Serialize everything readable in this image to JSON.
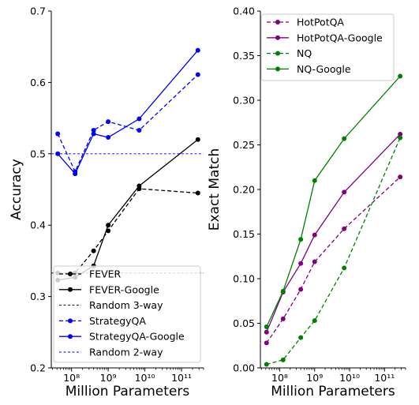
{
  "chart_data": [
    {
      "type": "line",
      "xlabel": "Million Parameters",
      "ylabel": "Accuracy",
      "xscale": "log",
      "xlim": [
        28000000,
        400000000000
      ],
      "ylim": [
        0.2,
        0.7
      ],
      "xticks": [
        100000000,
        1000000000,
        10000000000,
        100000000000
      ],
      "xtick_labels": [
        "10⁸",
        "10⁹",
        "10¹⁰",
        "10¹¹"
      ],
      "yticks": [
        0.2,
        0.3,
        0.4,
        0.5,
        0.6,
        0.7
      ],
      "ytick_labels": [
        "0.2",
        "0.3",
        "0.4",
        "0.5",
        "0.6",
        "0.7"
      ],
      "grid": false,
      "legend_position": "bottom-left",
      "series": [
        {
          "name": "FEVER",
          "color": "#000000",
          "dashed": true,
          "marker": "circle",
          "x": [
            42000000,
            125000000,
            400000000,
            1000000000,
            7000000000,
            280000000000
          ],
          "y": [
            0.333,
            0.333,
            0.364,
            0.392,
            0.451,
            0.445
          ]
        },
        {
          "name": "FEVER-Google",
          "color": "#000000",
          "dashed": false,
          "marker": "circle",
          "x": [
            42000000,
            125000000,
            400000000,
            1000000000,
            7000000000,
            280000000000
          ],
          "y": [
            0.323,
            0.327,
            0.343,
            0.4,
            0.455,
            0.52
          ]
        },
        {
          "name": "Random 3-way",
          "color": "#000000",
          "dashed": true,
          "marker": "none",
          "hline": 0.333
        },
        {
          "name": "StrategyQA",
          "color": "#0000ff",
          "dashed": true,
          "marker": "circle",
          "x": [
            42000000,
            125000000,
            400000000,
            1000000000,
            7000000000,
            280000000000
          ],
          "y": [
            0.528,
            0.475,
            0.533,
            0.545,
            0.533,
            0.611
          ]
        },
        {
          "name": "StrategyQA-Google",
          "color": "#0000ff",
          "dashed": false,
          "marker": "circle",
          "x": [
            42000000,
            125000000,
            400000000,
            1000000000,
            7000000000,
            280000000000
          ],
          "y": [
            0.5,
            0.472,
            0.528,
            0.523,
            0.549,
            0.645
          ]
        },
        {
          "name": "Random 2-way",
          "color": "#0000ff",
          "dashed": true,
          "marker": "none",
          "hline": 0.5
        }
      ]
    },
    {
      "type": "line",
      "xlabel": "Million Parameters",
      "ylabel": "Exact Match",
      "xscale": "log",
      "xlim": [
        28000000,
        400000000000
      ],
      "ylim": [
        0.0,
        0.4
      ],
      "xticks": [
        100000000,
        1000000000,
        10000000000,
        100000000000
      ],
      "xtick_labels": [
        "10⁸",
        "10⁹",
        "10¹⁰",
        "10¹¹"
      ],
      "yticks": [
        0.0,
        0.05,
        0.1,
        0.15,
        0.2,
        0.25,
        0.3,
        0.35,
        0.4
      ],
      "ytick_labels": [
        "0.00",
        "0.05",
        "0.10",
        "0.15",
        "0.20",
        "0.25",
        "0.30",
        "0.35",
        "0.40"
      ],
      "grid": false,
      "legend_position": "top-left",
      "series": [
        {
          "name": "HotPotQA",
          "color": "#800080",
          "dashed": true,
          "marker": "circle",
          "x": [
            42000000,
            125000000,
            400000000,
            1000000000,
            7000000000,
            280000000000
          ],
          "y": [
            0.028,
            0.055,
            0.088,
            0.119,
            0.156,
            0.214
          ]
        },
        {
          "name": "HotPotQA-Google",
          "color": "#800080",
          "dashed": false,
          "marker": "circle",
          "x": [
            42000000,
            125000000,
            400000000,
            1000000000,
            7000000000,
            280000000000
          ],
          "y": [
            0.04,
            0.085,
            0.117,
            0.149,
            0.197,
            0.262
          ]
        },
        {
          "name": "NQ",
          "color": "#008000",
          "dashed": true,
          "marker": "circle",
          "x": [
            42000000,
            125000000,
            400000000,
            1000000000,
            7000000000,
            280000000000
          ],
          "y": [
            0.004,
            0.009,
            0.034,
            0.053,
            0.112,
            0.258
          ]
        },
        {
          "name": "NQ-Google",
          "color": "#008000",
          "dashed": false,
          "marker": "circle",
          "x": [
            42000000,
            125000000,
            400000000,
            1000000000,
            7000000000,
            280000000000
          ],
          "y": [
            0.046,
            0.086,
            0.144,
            0.21,
            0.257,
            0.327
          ]
        }
      ]
    }
  ]
}
